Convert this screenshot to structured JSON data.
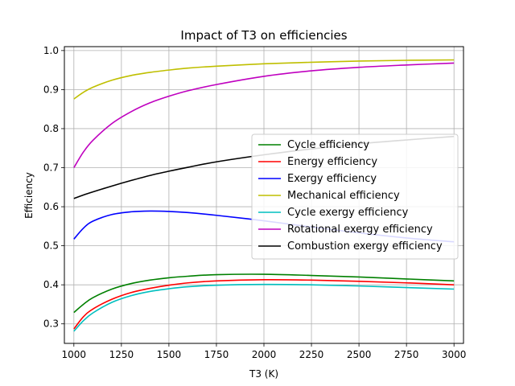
{
  "chart_data": {
    "type": "line",
    "title": "Impact of T3 on efficiencies",
    "xlabel": "T3 (K)",
    "ylabel": "Efficiency",
    "xlim": [
      950,
      3050
    ],
    "ylim": [
      0.25,
      1.01
    ],
    "xticks": [
      1000,
      1250,
      1500,
      1750,
      2000,
      2250,
      2500,
      2750,
      3000
    ],
    "yticks": [
      0.3,
      0.4,
      0.5,
      0.6,
      0.7,
      0.8,
      0.9,
      1.0
    ],
    "xtick_labels": [
      "1000",
      "1250",
      "1500",
      "1750",
      "2000",
      "2250",
      "2500",
      "2750",
      "3000"
    ],
    "ytick_labels": [
      "0.3",
      "0.4",
      "0.5",
      "0.6",
      "0.7",
      "0.8",
      "0.9",
      "1.0"
    ],
    "grid": true,
    "legend_position": "center-right",
    "x": [
      1000,
      1050,
      1100,
      1200,
      1300,
      1400,
      1500,
      1600,
      1750,
      2000,
      2250,
      2500,
      2750,
      3000
    ],
    "series": [
      {
        "name": "Cycle efficiency",
        "color": "#008000",
        "values": [
          0.329,
          0.35,
          0.367,
          0.389,
          0.403,
          0.412,
          0.418,
          0.422,
          0.426,
          0.427,
          0.424,
          0.42,
          0.415,
          0.41
        ]
      },
      {
        "name": "Energy efficiency",
        "color": "#ff0000",
        "values": [
          0.287,
          0.318,
          0.338,
          0.363,
          0.38,
          0.391,
          0.399,
          0.405,
          0.41,
          0.413,
          0.412,
          0.409,
          0.405,
          0.4
        ]
      },
      {
        "name": "Exergy efficiency",
        "color": "#0000ff",
        "values": [
          0.517,
          0.545,
          0.563,
          0.58,
          0.587,
          0.589,
          0.588,
          0.585,
          0.578,
          0.564,
          0.548,
          0.533,
          0.52,
          0.51
        ]
      },
      {
        "name": "Mechanical efficiency",
        "color": "#bfbf00",
        "values": [
          0.876,
          0.893,
          0.906,
          0.924,
          0.936,
          0.944,
          0.95,
          0.955,
          0.96,
          0.966,
          0.97,
          0.973,
          0.975,
          0.976
        ]
      },
      {
        "name": "Cycle exergy efficiency",
        "color": "#00bfbf",
        "values": [
          0.281,
          0.308,
          0.328,
          0.355,
          0.372,
          0.383,
          0.39,
          0.395,
          0.399,
          0.401,
          0.4,
          0.397,
          0.393,
          0.389
        ]
      },
      {
        "name": "Rotational exergy efficiency",
        "color": "#bf00bf",
        "values": [
          0.7,
          0.74,
          0.77,
          0.813,
          0.843,
          0.866,
          0.883,
          0.897,
          0.913,
          0.934,
          0.948,
          0.957,
          0.963,
          0.968
        ]
      },
      {
        "name": "Combustion exergy efficiency",
        "color": "#000000",
        "values": [
          0.621,
          0.63,
          0.638,
          0.653,
          0.667,
          0.68,
          0.691,
          0.701,
          0.715,
          0.733,
          0.748,
          0.761,
          0.771,
          0.78
        ]
      }
    ]
  }
}
